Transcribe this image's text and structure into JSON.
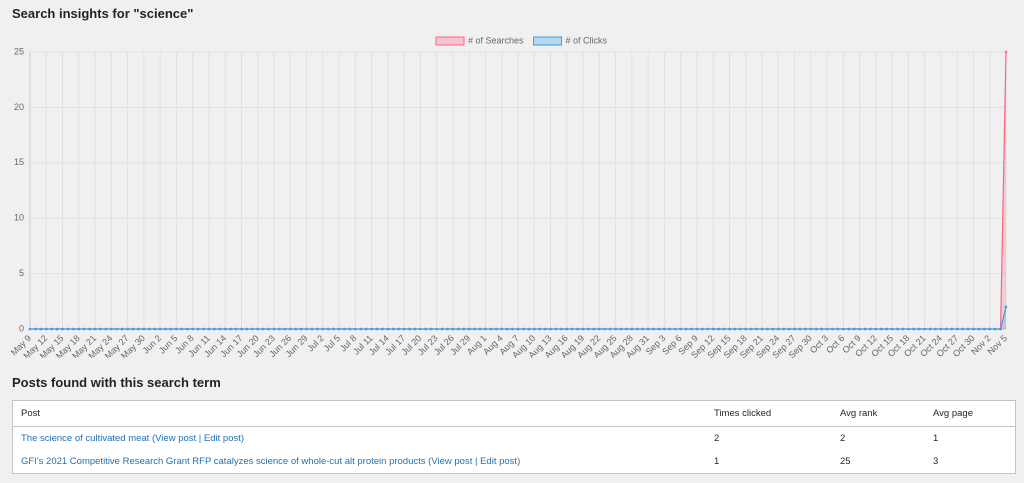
{
  "header": {
    "title": "Search insights for \"science\""
  },
  "chart_data": {
    "type": "line",
    "categories": [
      "May 9",
      null,
      null,
      "May 12",
      null,
      null,
      "May 15",
      null,
      null,
      "May 18",
      null,
      null,
      "May 21",
      null,
      null,
      "May 24",
      null,
      null,
      "May 27",
      null,
      null,
      "May 30",
      null,
      null,
      "Jun 2",
      null,
      null,
      "Jun 5",
      null,
      null,
      "Jun 8",
      null,
      null,
      "Jun 11",
      null,
      null,
      "Jun 14",
      null,
      null,
      "Jun 17",
      null,
      null,
      "Jun 20",
      null,
      null,
      "Jun 23",
      null,
      null,
      "Jun 26",
      null,
      null,
      "Jun 29",
      null,
      null,
      "Jul 2",
      null,
      null,
      "Jul 5",
      null,
      null,
      "Jul 8",
      null,
      null,
      "Jul 11",
      null,
      null,
      "Jul 14",
      null,
      null,
      "Jul 17",
      null,
      null,
      "Jul 20",
      null,
      null,
      "Jul 23",
      null,
      null,
      "Jul 26",
      null,
      null,
      "Jul 29",
      null,
      null,
      "Aug 1",
      null,
      null,
      "Aug 4",
      null,
      null,
      "Aug 7",
      null,
      null,
      "Aug 10",
      null,
      null,
      "Aug 13",
      null,
      null,
      "Aug 16",
      null,
      null,
      "Aug 19",
      null,
      null,
      "Aug 22",
      null,
      null,
      "Aug 25",
      null,
      null,
      "Aug 28",
      null,
      null,
      "Aug 31",
      null,
      null,
      "Sep 3",
      null,
      null,
      "Sep 6",
      null,
      null,
      "Sep 9",
      null,
      null,
      "Sep 12",
      null,
      null,
      "Sep 15",
      null,
      null,
      "Sep 18",
      null,
      null,
      "Sep 21",
      null,
      null,
      "Sep 24",
      null,
      null,
      "Sep 27",
      null,
      null,
      "Sep 30",
      null,
      null,
      "Oct 3",
      null,
      null,
      "Oct 6",
      null,
      null,
      "Oct 9",
      null,
      null,
      "Oct 12",
      null,
      null,
      "Oct 15",
      null,
      null,
      "Oct 18",
      null,
      null,
      "Oct 21",
      null,
      null,
      "Oct 24",
      null,
      null,
      "Oct 27",
      null,
      null,
      "Oct 30",
      null,
      null,
      "Nov 2",
      null,
      null,
      "Nov 5"
    ],
    "series": [
      {
        "name": "# of Searches",
        "color": "#ff6384",
        "values": [
          0,
          0,
          0,
          0,
          0,
          0,
          0,
          0,
          0,
          0,
          0,
          0,
          0,
          0,
          0,
          0,
          0,
          0,
          0,
          0,
          0,
          0,
          0,
          0,
          0,
          0,
          0,
          0,
          0,
          0,
          0,
          0,
          0,
          0,
          0,
          0,
          0,
          0,
          0,
          0,
          0,
          0,
          0,
          0,
          0,
          0,
          0,
          0,
          0,
          0,
          0,
          0,
          0,
          0,
          0,
          0,
          0,
          0,
          0,
          0,
          0,
          0,
          0,
          0,
          0,
          0,
          0,
          0,
          0,
          0,
          0,
          0,
          0,
          0,
          0,
          0,
          0,
          0,
          0,
          0,
          0,
          0,
          0,
          0,
          0,
          0,
          0,
          0,
          0,
          0,
          0,
          0,
          0,
          0,
          0,
          0,
          0,
          0,
          0,
          0,
          0,
          0,
          0,
          0,
          0,
          0,
          0,
          0,
          0,
          0,
          0,
          0,
          0,
          0,
          0,
          0,
          0,
          0,
          0,
          0,
          0,
          0,
          0,
          0,
          0,
          0,
          0,
          0,
          0,
          0,
          0,
          0,
          0,
          0,
          0,
          0,
          0,
          0,
          0,
          0,
          0,
          0,
          0,
          0,
          0,
          0,
          0,
          0,
          0,
          0,
          0,
          0,
          0,
          0,
          0,
          0,
          0,
          0,
          0,
          0,
          0,
          0,
          0,
          0,
          0,
          0,
          0,
          0,
          0,
          0,
          0,
          0,
          0,
          0,
          0,
          0,
          0,
          0,
          0,
          0,
          25
        ]
      },
      {
        "name": "# of Clicks",
        "color": "#36a2eb",
        "values": [
          0,
          0,
          0,
          0,
          0,
          0,
          0,
          0,
          0,
          0,
          0,
          0,
          0,
          0,
          0,
          0,
          0,
          0,
          0,
          0,
          0,
          0,
          0,
          0,
          0,
          0,
          0,
          0,
          0,
          0,
          0,
          0,
          0,
          0,
          0,
          0,
          0,
          0,
          0,
          0,
          0,
          0,
          0,
          0,
          0,
          0,
          0,
          0,
          0,
          0,
          0,
          0,
          0,
          0,
          0,
          0,
          0,
          0,
          0,
          0,
          0,
          0,
          0,
          0,
          0,
          0,
          0,
          0,
          0,
          0,
          0,
          0,
          0,
          0,
          0,
          0,
          0,
          0,
          0,
          0,
          0,
          0,
          0,
          0,
          0,
          0,
          0,
          0,
          0,
          0,
          0,
          0,
          0,
          0,
          0,
          0,
          0,
          0,
          0,
          0,
          0,
          0,
          0,
          0,
          0,
          0,
          0,
          0,
          0,
          0,
          0,
          0,
          0,
          0,
          0,
          0,
          0,
          0,
          0,
          0,
          0,
          0,
          0,
          0,
          0,
          0,
          0,
          0,
          0,
          0,
          0,
          0,
          0,
          0,
          0,
          0,
          0,
          0,
          0,
          0,
          0,
          0,
          0,
          0,
          0,
          0,
          0,
          0,
          0,
          0,
          0,
          0,
          0,
          0,
          0,
          0,
          0,
          0,
          0,
          0,
          0,
          0,
          0,
          0,
          0,
          0,
          0,
          0,
          0,
          0,
          0,
          0,
          0,
          0,
          0,
          0,
          0,
          0,
          0,
          0,
          2
        ]
      }
    ],
    "ylim": [
      0,
      25
    ],
    "yticks": [
      0,
      5,
      10,
      15,
      20,
      25
    ],
    "grid": true,
    "legend": "top"
  },
  "posts": {
    "title": "Posts found with this search term",
    "columns": [
      "Post",
      "Times clicked",
      "Avg rank",
      "Avg page"
    ],
    "rows": [
      {
        "post": "The science of cultivated meat",
        "view": "View post",
        "edit": "Edit post",
        "times_clicked": 2,
        "avg_rank": 2,
        "avg_page": 1
      },
      {
        "post": "GFI's 2021 Competitive Research Grant RFP catalyzes science of whole-cut alt protein products",
        "view": "View post",
        "edit": "Edit post",
        "times_clicked": 1,
        "avg_rank": 25,
        "avg_page": 3
      }
    ]
  }
}
